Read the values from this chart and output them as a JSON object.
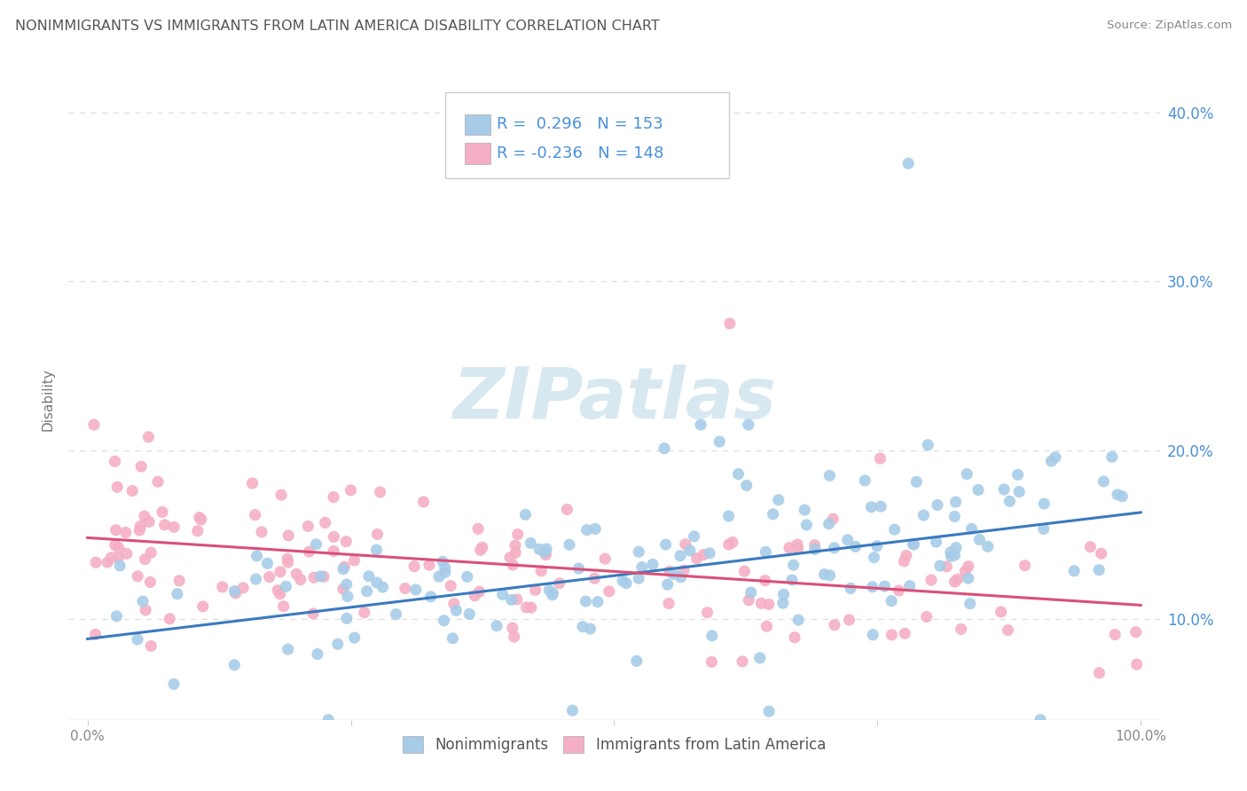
{
  "title": "NONIMMIGRANTS VS IMMIGRANTS FROM LATIN AMERICA DISABILITY CORRELATION CHART",
  "source": "Source: ZipAtlas.com",
  "ylabel": "Disability",
  "blue_R": 0.296,
  "blue_N": 153,
  "pink_R": -0.236,
  "pink_N": 148,
  "blue_color": "#a8cce8",
  "pink_color": "#f4afc4",
  "blue_line_color": "#3a7abf",
  "pink_line_color": "#d9507a",
  "title_color": "#555555",
  "source_color": "#888888",
  "legend_text_color": "#4a90d9",
  "watermark_color": "#d8e8f0",
  "watermark_text": "ZIPatlas",
  "xmin": 0.0,
  "xmax": 1.0,
  "ymin": 0.04,
  "ymax": 0.42,
  "ytick_vals": [
    0.1,
    0.2,
    0.3,
    0.4
  ],
  "ytick_labels": [
    "10.0%",
    "20.0%",
    "30.0%",
    "40.0%"
  ],
  "xtick_vals": [
    0.0,
    0.25,
    0.5,
    0.75,
    1.0
  ],
  "xtick_labels": [
    "0.0%",
    "",
    "",
    "",
    "100.0%"
  ],
  "blue_line_x0": 0.0,
  "blue_line_y0": 0.088,
  "blue_line_x1": 1.0,
  "blue_line_y1": 0.163,
  "pink_line_x0": 0.0,
  "pink_line_y0": 0.148,
  "pink_line_x1": 1.0,
  "pink_line_y1": 0.108,
  "grid_color": "#dddddd",
  "axis_line_color": "#cccccc"
}
